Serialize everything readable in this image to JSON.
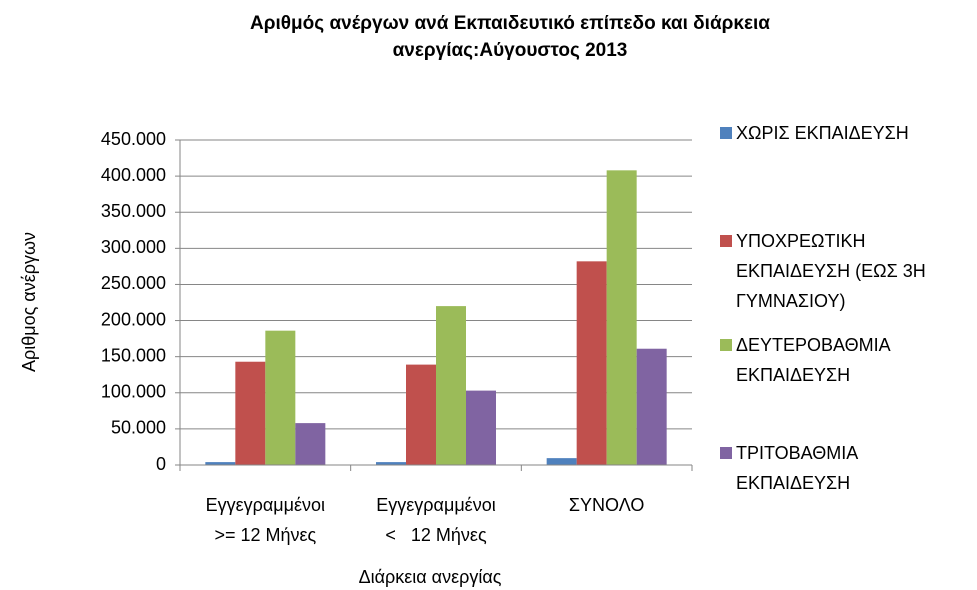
{
  "chart_data": {
    "type": "bar",
    "title": "Αριθμός ανέργων ανά Εκπαιδευτικό επίπεδο και διάρκεια ανεργίας:Αύγουστος 2013",
    "x_label": "Διάρκεια ανεργίας",
    "y_label": "Αριθμος ανέργων",
    "categories": [
      "Εγγεγραμμένοι\n>= 12 Μήνες",
      "Εγγεγραμμένοι\n<   12 Μήνες",
      "ΣΥΝΟΛΟ"
    ],
    "series": [
      {
        "name": "ΧΩΡΙΣ ΕΚΠΑΙΔΕΥΣΗ",
        "color": "#4f81bd",
        "values": [
          4000,
          4000,
          9500
        ]
      },
      {
        "name": "ΥΠΟΧΡΕΩΤΙΚΗ ΕΚΠΑΙΔΕΥΣΗ (ΕΩΣ 3Η ΓΥΜΝΑΣΙΟΥ)",
        "color": "#c0504d",
        "values": [
          143000,
          139000,
          282000
        ]
      },
      {
        "name": "ΔΕΥΤΕΡΟΒΑΘΜΙΑ ΕΚΠΑΙΔΕΥΣΗ",
        "color": "#9bbb59",
        "values": [
          186000,
          220000,
          408000
        ]
      },
      {
        "name": "ΤΡΙΤΟΒΑΘΜΙΑ ΕΚΠΑΙΔΕΥΣΗ",
        "color": "#8064a2",
        "values": [
          58000,
          103000,
          161000
        ]
      }
    ],
    "ylim": [
      0,
      450000
    ],
    "yticks": [
      0,
      {
        "value": 50000,
        "label": "50.000"
      },
      {
        "value": 100000,
        "label": "100.000"
      },
      {
        "value": 150000,
        "label": "150.000"
      },
      {
        "value": 200000,
        "label": "200.000"
      },
      {
        "value": 250000,
        "label": "250.000"
      },
      {
        "value": 300000,
        "label": "300.000"
      },
      {
        "value": 350000,
        "label": "350.000"
      },
      {
        "value": 400000,
        "label": "400.000"
      },
      {
        "value": 450000,
        "label": "450.000"
      }
    ],
    "grid": true,
    "legend": "right"
  }
}
